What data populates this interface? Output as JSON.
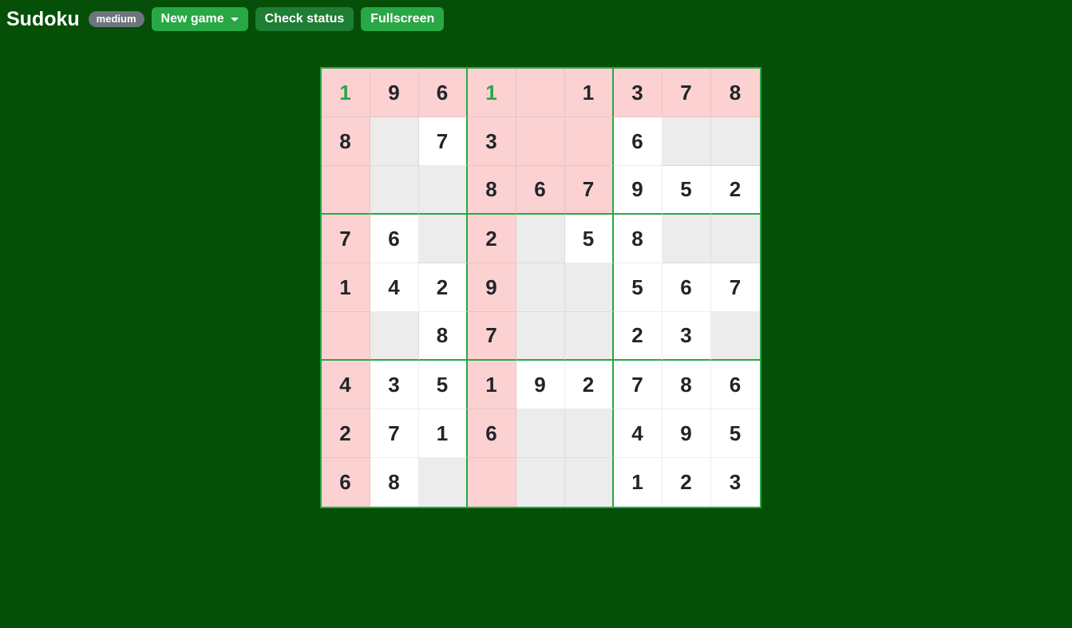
{
  "header": {
    "title": "Sudoku",
    "difficulty_badge": "medium",
    "buttons": {
      "new_game": "New game",
      "new_game_icon": "caret-down-icon",
      "check_status": "Check status",
      "fullscreen": "Fullscreen"
    }
  },
  "colors": {
    "page_bg": "#054f08",
    "button_bright_green": "#28a745",
    "button_dark_green": "#1e7e34",
    "badge_gray": "#6c757d",
    "grid_border_green": "#28a745",
    "cell_white": "#ffffff",
    "cell_empty_gray": "#ececec",
    "cell_conflict_pink": "#fcd1d2",
    "number_dark": "#212529",
    "number_user_green": "#28a745"
  },
  "board": {
    "rows": 9,
    "cols": 9,
    "values": [
      [
        "1",
        "9",
        "6",
        "1",
        "",
        "1",
        "3",
        "7",
        "8"
      ],
      [
        "8",
        "",
        "7",
        "3",
        "",
        "",
        "6",
        "",
        ""
      ],
      [
        "",
        "",
        "",
        "8",
        "6",
        "7",
        "9",
        "5",
        "2"
      ],
      [
        "7",
        "6",
        "",
        "2",
        "",
        "5",
        "8",
        "",
        ""
      ],
      [
        "1",
        "4",
        "2",
        "9",
        "",
        "",
        "5",
        "6",
        "7"
      ],
      [
        "",
        "",
        "8",
        "7",
        "",
        "",
        "2",
        "3",
        ""
      ],
      [
        "4",
        "3",
        "5",
        "1",
        "9",
        "2",
        "7",
        "8",
        "6"
      ],
      [
        "2",
        "7",
        "1",
        "6",
        "",
        "",
        "4",
        "9",
        "5"
      ],
      [
        "6",
        "8",
        "",
        "",
        "",
        "",
        "1",
        "2",
        "3"
      ]
    ],
    "backgrounds": [
      "PPPPPPPPP",
      "PGWPPPWGG",
      "PGGPPPWWW",
      "PWGPGWWGG",
      "PWWPGGWWW",
      "PGWPGGWWG",
      "PWWPWWWWW",
      "PWWPGGWWW",
      "PWGPGGWWW"
    ],
    "background_legend": {
      "P": "pink-conflict",
      "W": "white-filled",
      "G": "gray-empty"
    },
    "green_cells": [
      [
        0,
        0
      ],
      [
        0,
        3
      ]
    ]
  }
}
